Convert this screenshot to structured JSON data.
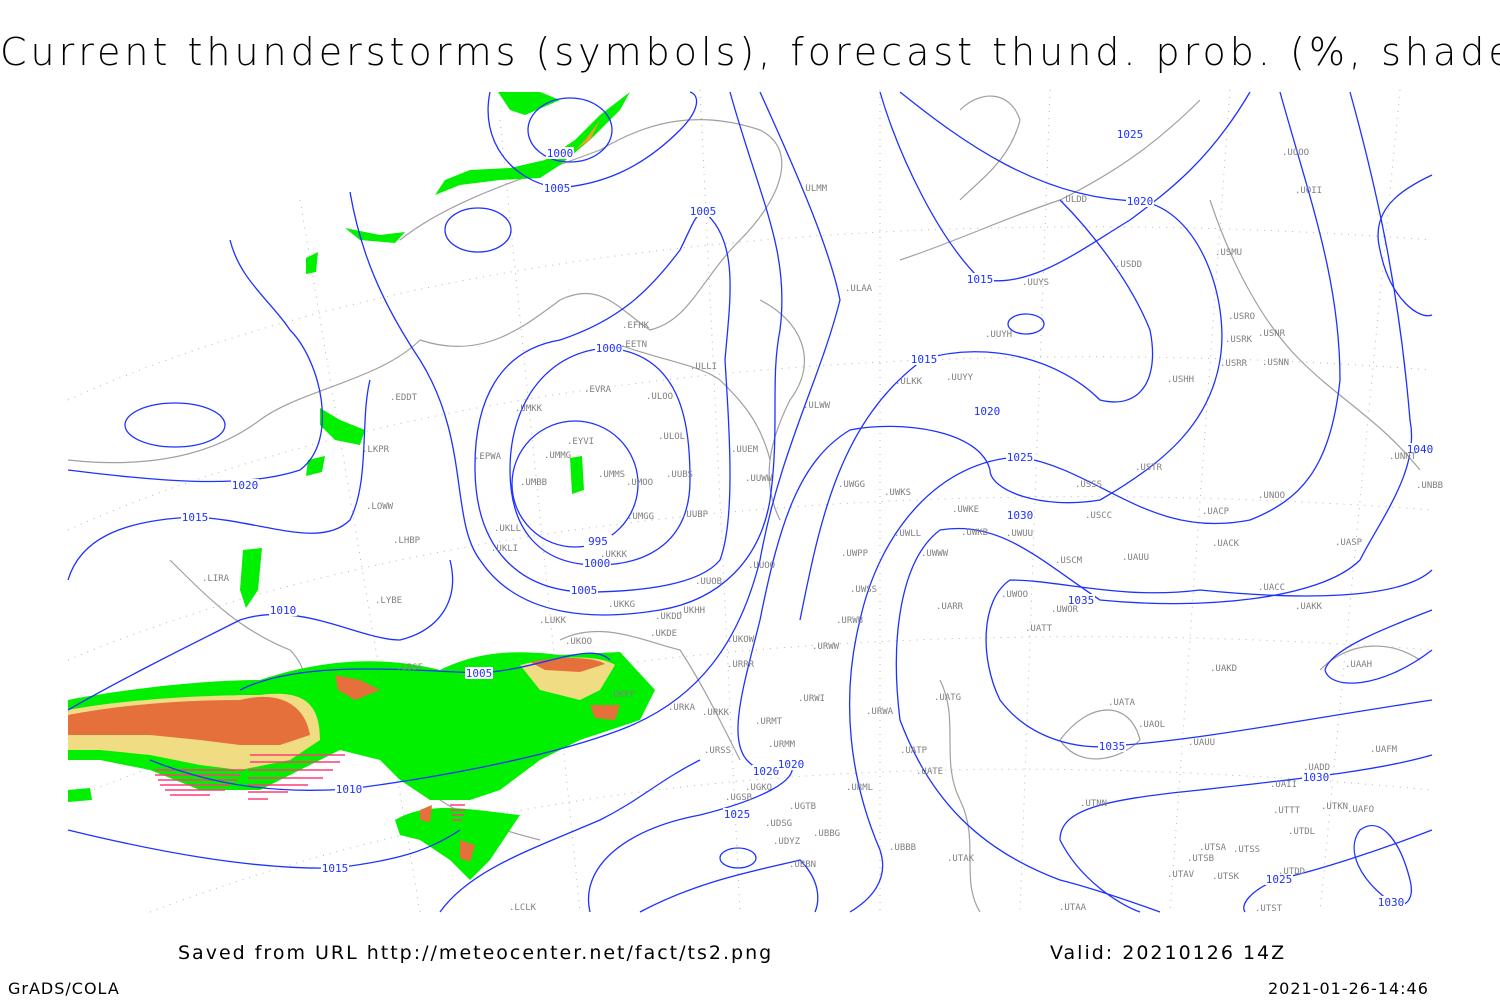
{
  "title": "Current thunderstorms (symbols), forecast thund. prob. (%, shaded)",
  "footer": {
    "saved": "Saved from URL http://meteocenter.net/fact/ts2.png",
    "valid": "Valid: 20210126 14Z",
    "software": "GrADS/COLA",
    "timestamp": "2021-01-26-14:46"
  },
  "colors": {
    "isobar": "#1e32ff",
    "coastline": "#a0a0a0",
    "prob_low": "#00f000",
    "prob_mid": "#f0dc82",
    "prob_high": "#e6703c",
    "prob_very_high": "#c83c28",
    "storm_symbol": "#ff3c78"
  },
  "isobar_labels": [
    "1000",
    "1005",
    "1005",
    "1025",
    "1020",
    "1015",
    "1000",
    "1015",
    "1020",
    "1025",
    "1030",
    "1040",
    "1020",
    "1015",
    "995",
    "1000",
    "1005",
    "1035",
    "1010",
    "1005",
    "1035",
    "1020",
    "1020",
    "1030",
    "1010",
    "1025",
    "1015",
    "1025",
    "1030"
  ],
  "stations": [
    "ULMM",
    "ULDD",
    "USDD",
    "USMU",
    "UOOO",
    "UOII",
    "ULAA",
    "UUYS",
    "UUYH",
    "USRO",
    "USNR",
    "USRK",
    "USRR",
    "USNN",
    "USHH",
    "EFHK",
    "EETN",
    "ULLI",
    "EVRA",
    "ULOO",
    "UMKK",
    "EDDT",
    "ULKK",
    "UUYY",
    "ULWW",
    "EYVI",
    "ULOL",
    "UUEM",
    "LKPR",
    "EPWA",
    "UMMG",
    "UMMS",
    "UUBS",
    "UMBB",
    "UMOO",
    "UUWW",
    "UWGG",
    "UWKS",
    "UWKE",
    "USTR",
    "USSS",
    "UNOO",
    "UACP",
    "UUBP",
    "UMGG",
    "LOWW",
    "USCC",
    "UWLL",
    "UWKB",
    "UWUU",
    "UACK",
    "UASP",
    "UKLL",
    "UKLI",
    "LHBP",
    "UKKK",
    "UWPP",
    "UWWW",
    "USCM",
    "UAUU",
    "UUOO",
    "LIRA",
    "UUOB",
    "UWSS",
    "UWOO",
    "UWOR",
    "UATT",
    "UACC",
    "UAKK",
    "LYBE",
    "UKKG",
    "UKDD",
    "UKHH",
    "UARR",
    "URWB",
    "LUKK",
    "UKDE",
    "UKOO",
    "UKOW",
    "URWW",
    "URRR",
    "UAKD",
    "UAAH",
    "LBSF",
    "UKFF",
    "URKA",
    "URKK",
    "URWI",
    "URWA",
    "UATG",
    "UATA",
    "UAOL",
    "UAUU",
    "UAFM",
    "URMT",
    "URMM",
    "URSS",
    "UATP",
    "UATE",
    "UADD",
    "UGKO",
    "URML",
    "UAII",
    "UGSB",
    "UGTB",
    "UTNN",
    "UTTT",
    "UTKN",
    "UAFO",
    "UDSG",
    "UTDL",
    "UBBG",
    "UDYZ",
    "UBBB",
    "UTSA",
    "UTSS",
    "UTSB",
    "UTAK",
    "UBBN",
    "UTDD",
    "UTAV",
    "UTSK",
    "LCLK",
    "UTAA",
    "UTST",
    "UNNT",
    "UNBB"
  ]
}
